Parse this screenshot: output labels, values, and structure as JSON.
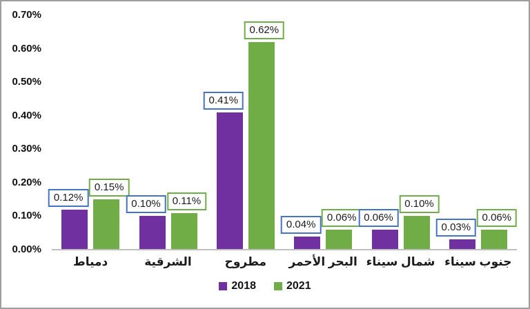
{
  "chart_data": {
    "type": "bar",
    "categories": [
      "دمياط",
      "الشرقية",
      "مطروح",
      "البحر الأحمر",
      "شمال سيناء",
      "جنوب سيناء"
    ],
    "series": [
      {
        "name": "2018",
        "color": "#7030A0",
        "label_border_color": "#4472C4",
        "values": [
          0.12,
          0.1,
          0.41,
          0.04,
          0.06,
          0.03
        ],
        "labels": [
          "0.12%",
          "0.10%",
          "0.41%",
          "0.04%",
          "0.06%",
          "0.03%"
        ]
      },
      {
        "name": "2021",
        "color": "#70AD47",
        "label_border_color": "#70AD47",
        "values": [
          0.15,
          0.11,
          0.62,
          0.06,
          0.1,
          0.06
        ],
        "labels": [
          "0.15%",
          "0.11%",
          "0.62%",
          "0.06%",
          "0.10%",
          "0.06%"
        ]
      }
    ],
    "y_ticks": [
      "0.00%",
      "0.10%",
      "0.20%",
      "0.30%",
      "0.40%",
      "0.50%",
      "0.60%",
      "0.70%"
    ],
    "ylim": [
      0,
      0.7
    ],
    "grid": false,
    "legend_position": "bottom",
    "axis_line_color": "#bfbfbf",
    "frame_border_color": "#9d9d9d"
  }
}
